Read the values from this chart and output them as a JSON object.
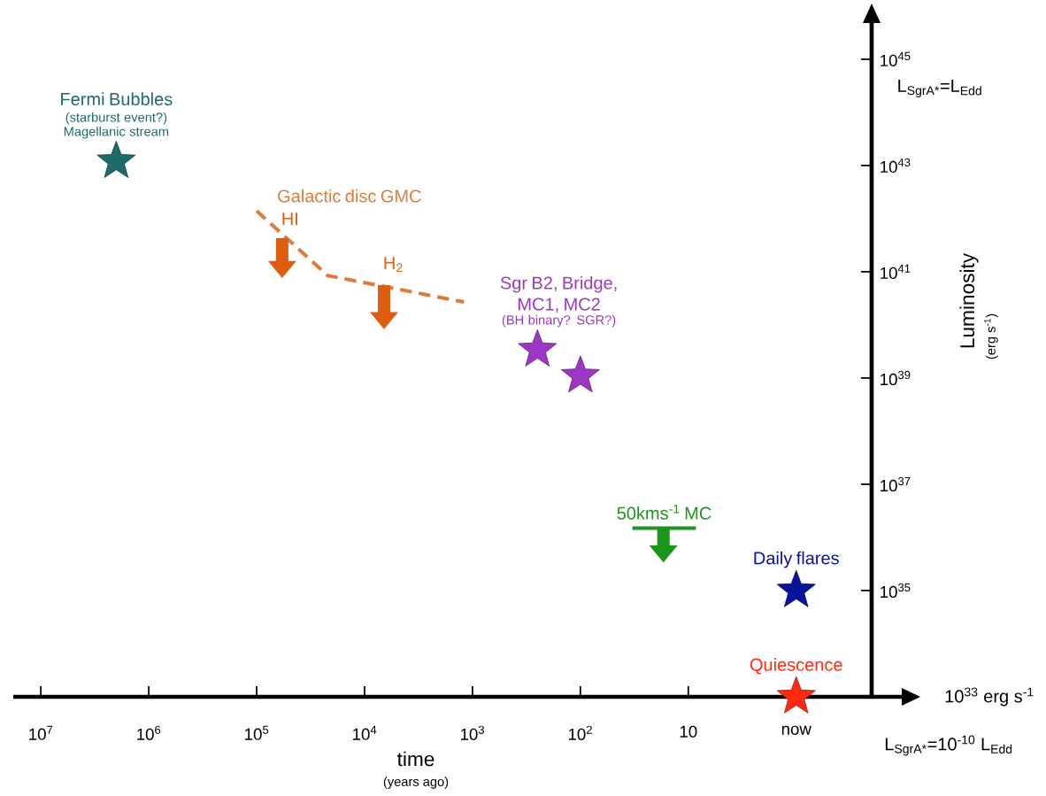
{
  "chart_data": {
    "type": "scatter",
    "xlabel": "time",
    "ylabel": "Luminosity",
    "log": "xy",
    "xlim": [
      18000000.0,
      0.2
    ],
    "ylim": [
      1e+33,
      5e+45
    ],
    "xticks": [
      {
        "value": 10000000.0,
        "label": "10$^{7}$"
      },
      {
        "value": 1000000.0,
        "label": "10$^{6}$"
      },
      {
        "value": 100000.0,
        "label": "10$^{5}$"
      },
      {
        "value": 10000.0,
        "label": "10$^{4}$"
      },
      {
        "value": 1000.0,
        "label": "10$^{3}$"
      },
      {
        "value": 100,
        "label": "10$^{2}$"
      },
      10,
      {
        "value": 1,
        "label": "now"
      }
    ],
    "yticks": [
      {
        "value": 1e+35,
        "label": "10$^{35}$"
      },
      {
        "value": 1e+37,
        "label": "10$^{37}$"
      },
      {
        "value": 1e+39,
        "label": "10$^{39}$"
      },
      {
        "value": 1e+41,
        "label": "10$^{41}$"
      },
      {
        "value": 1e+43,
        "label": "10$^{43}$"
      },
      {
        "value": 1e+45,
        "label": "10$^{45}$"
      }
    ],
    "series": [
      {
        "name": "Fermi Bubbles",
        "marker": "star",
        "color": "#1e6b6b",
        "x": [
          2000000.0
        ],
        "values": [
          1.2e+43
        ]
      },
      {
        "name": "Galactic disc GMC",
        "type": "line",
        "marker": "none",
        "line_style": "dashed",
        "color": "#e07a3a",
        "x": [
          100000.0,
          22000.0,
          1200.0
        ],
        "values": [
          1.4e+42,
          8.5e+40,
          2.7e+40
        ]
      },
      {
        "marker": "triangle",
        "color": "#dd5e0f",
        "x": [
          58000.0,
          6600.0
        ],
        "values": [
          1.1e+41,
          1.2e+40
        ],
        "errors": [
          [
            1.1e+41,
            4.3e+41
          ],
          [
            1.2e+40,
            5.6e+40
          ]
        ]
      },
      {
        "name": "Sgr B2, Bridge, MC1, MC2",
        "marker": "star",
        "color": "#9b37c3",
        "x": [
          250,
          100
        ],
        "values": [
          3.4e+39,
          1.1e+39
        ]
      },
      {
        "name": "50kms$^{-1}$ MC",
        "type": "line",
        "marker": "none",
        "color": "#1a961a",
        "x": [
          33,
          8.5
        ],
        "values": [
          1.5e+36,
          1.5e+36
        ]
      },
      {
        "marker": "triangle",
        "color": "#1a961a",
        "x": [
          17
        ],
        "values": [
          4.9e+35
        ],
        "errors": [
          [
            4.9e+35,
            1.5e+36
          ]
        ]
      },
      {
        "name": "Daily flares",
        "marker": "star",
        "color": "#0a149a",
        "x": [
          1
        ],
        "values": [
          1e+35
        ]
      },
      {
        "name": "Quiescence",
        "marker": "star",
        "color": "#ff2a10",
        "x": [
          1
        ],
        "values": [
          1e+33
        ]
      }
    ],
    "annotations": [
      {
        "text": "(starburst event?)",
        "x": 2000000.0,
        "y": 1.2e+43
      },
      {
        "text": "Magellanic stream",
        "x": 2000000.0,
        "y": 1.2e+43
      },
      {
        "text": "(BH binary? SGR?)",
        "x": 250,
        "y": 3.4e+39
      },
      {
        "text": "HI",
        "x": 58000.0,
        "y": 4.3e+41
      },
      {
        "text": "H$_{2}$",
        "x": 6600.0,
        "y": 5.6e+40
      },
      "10$^{33}$ erg s$^{-1}$",
      "L$_{SgrA*}$=10$^{-10}$ L$_{Edd}$",
      "L$_{SgrA*}$=L$_{Edd}$",
      "(years ago)",
      "(erg s$^{-1}$)"
    ]
  }
}
